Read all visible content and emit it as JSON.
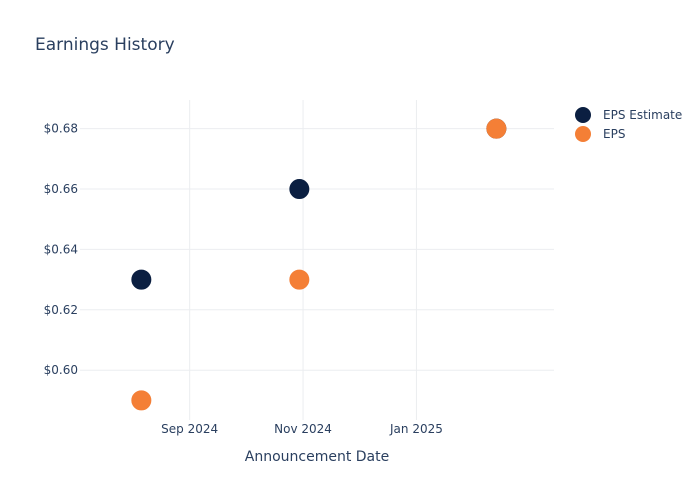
{
  "chart_data": {
    "type": "scatter",
    "title": "Earnings History",
    "xlabel": "Announcement Date",
    "ylabel": "",
    "x_ticks": [
      {
        "date": "2024-09-01",
        "label": "Sep 2024"
      },
      {
        "date": "2024-11-01",
        "label": "Nov 2024"
      },
      {
        "date": "2025-01-01",
        "label": "Jan 2025"
      }
    ],
    "xlim": [
      "2024-07-04",
      "2025-03-16"
    ],
    "ylim": [
      0.5835,
      0.6895
    ],
    "y_ticks": [
      0.6,
      0.62,
      0.64,
      0.66,
      0.68
    ],
    "y_tick_prefix": "$",
    "grid": true,
    "legend_position": "top-right",
    "series": [
      {
        "name": "EPS Estimate",
        "color": "#0b1f41",
        "points": [
          {
            "x": "2024-08-06",
            "y": 0.63
          },
          {
            "x": "2024-10-30",
            "y": 0.66
          },
          {
            "x": "2025-02-13",
            "y": 0.68
          }
        ]
      },
      {
        "name": "EPS",
        "color": "#f47f36",
        "points": [
          {
            "x": "2024-08-06",
            "y": 0.59
          },
          {
            "x": "2024-10-30",
            "y": 0.63
          },
          {
            "x": "2025-02-13",
            "y": 0.68
          }
        ]
      }
    ]
  }
}
